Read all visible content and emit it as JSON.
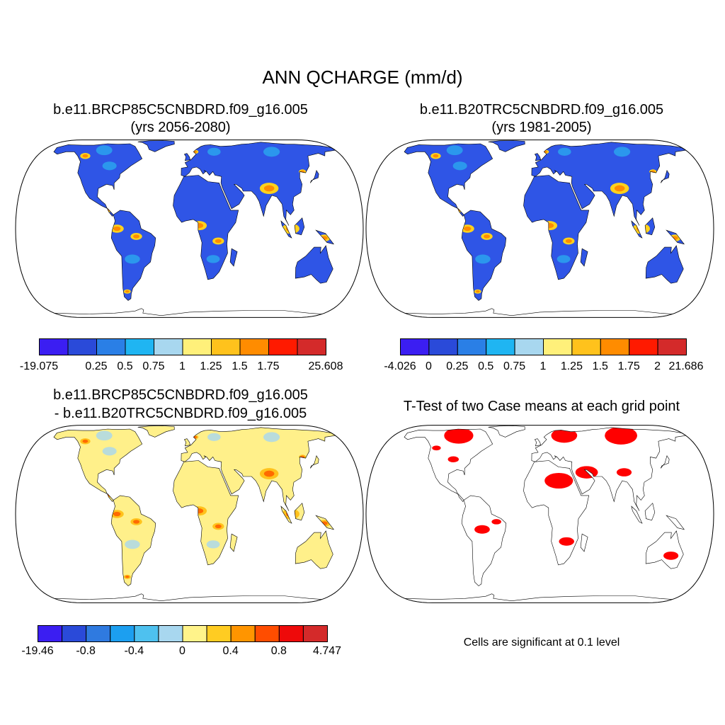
{
  "title": "ANN QCHARGE (mm/d)",
  "panels": {
    "p1": {
      "title_line1": "b.e11.BRCP85C5CNBDRD.f09_g16.005",
      "title_line2": "(yrs 2056-2080)"
    },
    "p2": {
      "title_line1": "b.e11.B20TRC5CNBDRD.f09_g16.005",
      "title_line2": "(yrs 1981-2005)"
    },
    "p3": {
      "title_line1": "b.e11.BRCP85C5CNBDRD.f09_g16.005",
      "title_line2": "- b.e11.B20TRC5CNBDRD.f09_g16.005"
    },
    "p4": {
      "title_line1": "T-Test of two Case means at each grid point",
      "note": "Cells are significant at 0.1 level"
    }
  },
  "colorbars": {
    "cb1": {
      "colors": [
        "#3b1ef2",
        "#2a4ad9",
        "#2a7fe6",
        "#1fb5f2",
        "#a8d7ef",
        "#fff07a",
        "#ffc21c",
        "#ff8c00",
        "#ff1a00",
        "#d42a2a"
      ],
      "labels": [
        "-19.075",
        "0.25",
        "0.5",
        "0.75",
        "1",
        "1.25",
        "1.5",
        "1.75",
        "25.608"
      ],
      "label_boundaries": [
        0,
        2,
        3,
        4,
        5,
        6,
        7,
        8,
        10
      ]
    },
    "cb2": {
      "colors": [
        "#3b1ef2",
        "#2a4ad9",
        "#2a7fe6",
        "#1fb5f2",
        "#a8d7ef",
        "#fff07a",
        "#ffc21c",
        "#ff8c00",
        "#ff1a00",
        "#d42a2a"
      ],
      "labels": [
        "-4.026",
        "0",
        "0.25",
        "0.5",
        "0.75",
        "1",
        "1.25",
        "1.5",
        "1.75",
        "2",
        "21.686"
      ],
      "label_boundaries": [
        0,
        1,
        2,
        3,
        4,
        5,
        6,
        7,
        8,
        9,
        10
      ]
    },
    "cb3": {
      "colors": [
        "#3b1ef2",
        "#2a4ad9",
        "#2f7ae0",
        "#1c9ff0",
        "#4ec1ef",
        "#a8d7ef",
        "#fff38a",
        "#ffcc22",
        "#ff9500",
        "#ff4d00",
        "#ee0a0a",
        "#d42a2a"
      ],
      "labels": [
        "-19.46",
        "-0.8",
        "-0.4",
        "0",
        "0.4",
        "0.8",
        "4.747"
      ],
      "label_boundaries": [
        0,
        2,
        4,
        6,
        8,
        10,
        12
      ]
    }
  },
  "map_colors": {
    "p1": {
      "land": "#2f55e6",
      "hot": "#ff8c00",
      "warm": "#ffd21c",
      "cool": "#2aa8ef"
    },
    "p2": {
      "land": "#2f55e6",
      "hot": "#ff8c00",
      "warm": "#ffd21c",
      "cool": "#2aa8ef"
    },
    "p3": {
      "land": "#fff08a",
      "hot": "#ff6a00",
      "warm": "#ffc21c",
      "cool": "#a8d7ef"
    },
    "p4": {
      "land": "#ffffff",
      "hot": "#ff0000",
      "warm": "#ff0000",
      "cool": "#ff0000"
    }
  }
}
